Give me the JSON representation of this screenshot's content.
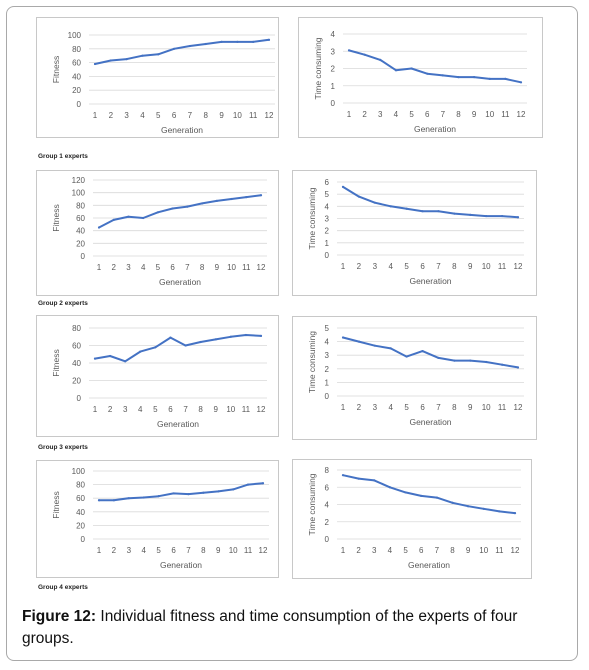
{
  "figure": {
    "caption_label": "Figure 12:",
    "caption_text": " Individual fitness and time consumption of the experts of four groups."
  },
  "groups": [
    {
      "label": "Group 1 experts"
    },
    {
      "label": "Group 2 experts"
    },
    {
      "label": "Group 3 experts"
    },
    {
      "label": "Group 4 experts"
    }
  ],
  "style": {
    "line_color": "#4472c4",
    "grid_color": "#d9d9d9",
    "text_color": "#595959"
  },
  "chart_data": [
    {
      "id": "g1-fitness",
      "type": "line",
      "xlabel": "Generation",
      "ylabel": "Fitness",
      "categories": [
        "1",
        "2",
        "3",
        "4",
        "5",
        "6",
        "7",
        "8",
        "9",
        "10",
        "11",
        "12"
      ],
      "ylim": [
        0,
        100
      ],
      "yticks": [
        0,
        20,
        40,
        60,
        80,
        100
      ],
      "grid": true,
      "values": [
        58,
        63,
        65,
        70,
        72,
        80,
        84,
        87,
        90,
        90,
        90,
        93
      ]
    },
    {
      "id": "g1-time",
      "type": "line",
      "xlabel": "Generation",
      "ylabel": "Time consuming",
      "categories": [
        "1",
        "2",
        "3",
        "4",
        "5",
        "6",
        "7",
        "8",
        "9",
        "10",
        "11",
        "12"
      ],
      "ylim": [
        0,
        4
      ],
      "yticks": [
        0,
        1,
        2,
        3,
        4
      ],
      "grid": true,
      "values": [
        3.05,
        2.8,
        2.5,
        1.9,
        2.0,
        1.7,
        1.6,
        1.5,
        1.5,
        1.4,
        1.4,
        1.2
      ]
    },
    {
      "id": "g2-fitness",
      "type": "line",
      "xlabel": "Generation",
      "ylabel": "Fitness",
      "categories": [
        "1",
        "2",
        "3",
        "4",
        "5",
        "6",
        "7",
        "8",
        "9",
        "10",
        "11",
        "12"
      ],
      "ylim": [
        0,
        120
      ],
      "yticks": [
        0,
        20,
        40,
        60,
        80,
        100,
        120
      ],
      "grid": true,
      "values": [
        45,
        57,
        62,
        60,
        69,
        75,
        78,
        83,
        87,
        90,
        93,
        96
      ]
    },
    {
      "id": "g2-time",
      "type": "line",
      "xlabel": "Generation",
      "ylabel": "Time consuming",
      "categories": [
        "1",
        "2",
        "3",
        "4",
        "5",
        "6",
        "7",
        "8",
        "9",
        "10",
        "11",
        "12"
      ],
      "ylim": [
        0,
        6
      ],
      "yticks": [
        0,
        1,
        2,
        3,
        4,
        5,
        6
      ],
      "grid": true,
      "values": [
        5.6,
        4.8,
        4.3,
        4.0,
        3.8,
        3.6,
        3.6,
        3.4,
        3.3,
        3.2,
        3.2,
        3.1
      ]
    },
    {
      "id": "g3-fitness",
      "type": "line",
      "xlabel": "Generation",
      "ylabel": "Fitness",
      "categories": [
        "1",
        "2",
        "3",
        "4",
        "5",
        "6",
        "7",
        "8",
        "9",
        "10",
        "11",
        "12"
      ],
      "ylim": [
        0,
        80
      ],
      "yticks": [
        0,
        20,
        40,
        60,
        80
      ],
      "grid": true,
      "values": [
        45,
        48,
        42,
        53,
        58,
        69,
        60,
        64,
        67,
        70,
        72,
        71
      ]
    },
    {
      "id": "g3-time",
      "type": "line",
      "xlabel": "Generation",
      "ylabel": "Time consuming",
      "categories": [
        "1",
        "2",
        "3",
        "4",
        "5",
        "6",
        "7",
        "8",
        "9",
        "10",
        "11",
        "12"
      ],
      "ylim": [
        0,
        5
      ],
      "yticks": [
        0,
        1,
        2,
        3,
        4,
        5
      ],
      "grid": true,
      "values": [
        4.3,
        4.0,
        3.7,
        3.5,
        2.9,
        3.3,
        2.8,
        2.6,
        2.6,
        2.5,
        2.3,
        2.1
      ]
    },
    {
      "id": "g4-fitness",
      "type": "line",
      "xlabel": "Generation",
      "ylabel": "Fitness",
      "categories": [
        "1",
        "2",
        "3",
        "4",
        "5",
        "6",
        "7",
        "8",
        "9",
        "10",
        "11",
        "12"
      ],
      "ylim": [
        0,
        100
      ],
      "yticks": [
        0,
        20,
        40,
        60,
        80,
        100
      ],
      "grid": true,
      "values": [
        57,
        57,
        60,
        61,
        63,
        67,
        66,
        68,
        70,
        73,
        80,
        82
      ]
    },
    {
      "id": "g4-time",
      "type": "line",
      "xlabel": "Generation",
      "ylabel": "Time consuming",
      "categories": [
        "1",
        "2",
        "3",
        "4",
        "5",
        "6",
        "7",
        "8",
        "9",
        "10",
        "11",
        "12"
      ],
      "ylim": [
        0,
        8
      ],
      "yticks": [
        0,
        2,
        4,
        6,
        8
      ],
      "grid": true,
      "values": [
        7.4,
        7.0,
        6.8,
        6.0,
        5.4,
        5.0,
        4.8,
        4.2,
        3.8,
        3.5,
        3.2,
        3.0
      ]
    }
  ]
}
